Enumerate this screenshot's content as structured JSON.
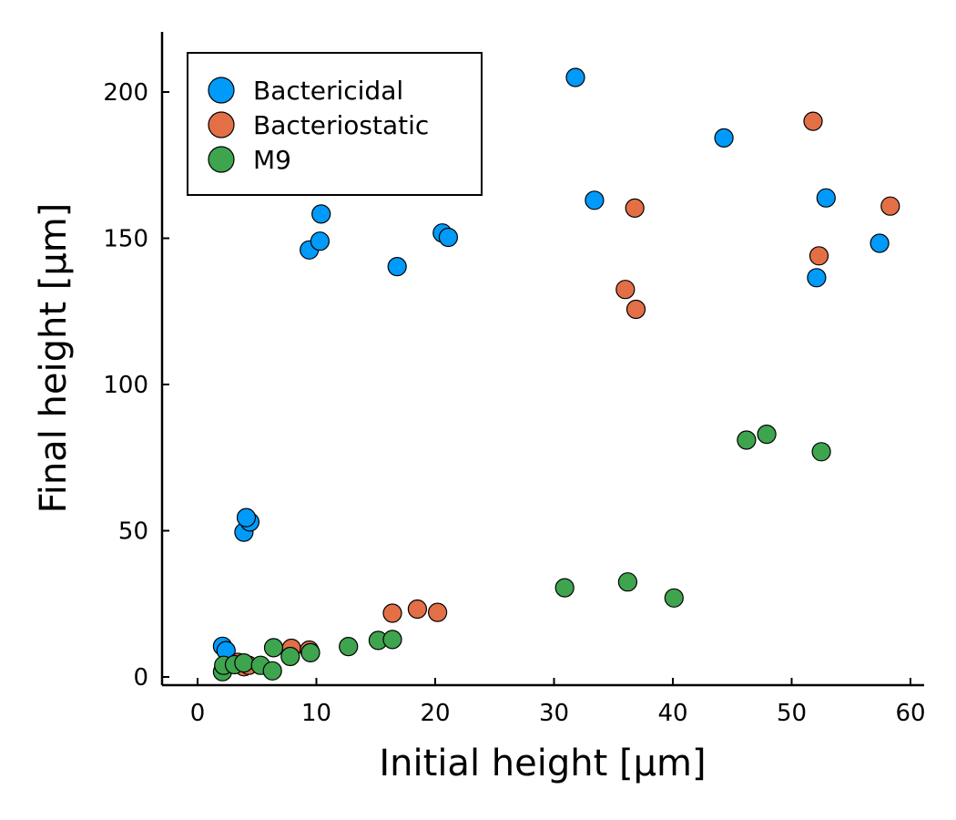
{
  "chart_data": {
    "type": "scatter",
    "title": "",
    "xlabel": "Initial height [µm]",
    "ylabel": "Final height [µm]",
    "xlim": [
      -3,
      61
    ],
    "ylim": [
      -3,
      220
    ],
    "xticks": [
      0,
      10,
      20,
      30,
      40,
      50,
      60
    ],
    "yticks": [
      0,
      50,
      100,
      150,
      200
    ],
    "grid": false,
    "legend_position": "top-left",
    "series": [
      {
        "name": "Bactericidal",
        "color": "#009AFA",
        "points": [
          [
            2.1,
            10.5
          ],
          [
            2.4,
            9.0
          ],
          [
            3.9,
            49.5
          ],
          [
            4.4,
            53.0
          ],
          [
            4.1,
            54.5
          ],
          [
            9.4,
            146.0
          ],
          [
            10.3,
            149.0
          ],
          [
            10.4,
            158.3
          ],
          [
            16.8,
            140.3
          ],
          [
            20.6,
            151.8
          ],
          [
            21.1,
            150.3
          ],
          [
            31.8,
            205.0
          ],
          [
            33.4,
            163.0
          ],
          [
            44.3,
            184.3
          ],
          [
            52.1,
            136.5
          ],
          [
            52.9,
            163.8
          ],
          [
            57.4,
            148.3
          ]
        ]
      },
      {
        "name": "Bacteriostatic",
        "color": "#E36F47",
        "points": [
          [
            3.4,
            5.0
          ],
          [
            3.9,
            3.5
          ],
          [
            4.3,
            4.0
          ],
          [
            7.9,
            9.8
          ],
          [
            9.4,
            9.2
          ],
          [
            16.4,
            21.8
          ],
          [
            18.5,
            23.2
          ],
          [
            20.2,
            22.1
          ],
          [
            36.0,
            132.5
          ],
          [
            36.8,
            160.3
          ],
          [
            36.9,
            125.7
          ],
          [
            51.8,
            190.0
          ],
          [
            52.3,
            144.0
          ],
          [
            58.3,
            161.0
          ]
        ]
      },
      {
        "name": "M9",
        "color": "#3EA44E",
        "points": [
          [
            2.1,
            1.8
          ],
          [
            2.2,
            4.0
          ],
          [
            3.1,
            4.2
          ],
          [
            3.9,
            4.8
          ],
          [
            5.3,
            4.0
          ],
          [
            6.3,
            2.1
          ],
          [
            6.4,
            10.0
          ],
          [
            7.8,
            7.0
          ],
          [
            9.5,
            8.3
          ],
          [
            12.7,
            10.4
          ],
          [
            15.2,
            12.5
          ],
          [
            16.4,
            12.8
          ],
          [
            30.9,
            30.5
          ],
          [
            36.2,
            32.5
          ],
          [
            40.1,
            27.0
          ],
          [
            46.2,
            81.0
          ],
          [
            47.9,
            83.0
          ],
          [
            52.5,
            77.0
          ]
        ]
      }
    ]
  }
}
